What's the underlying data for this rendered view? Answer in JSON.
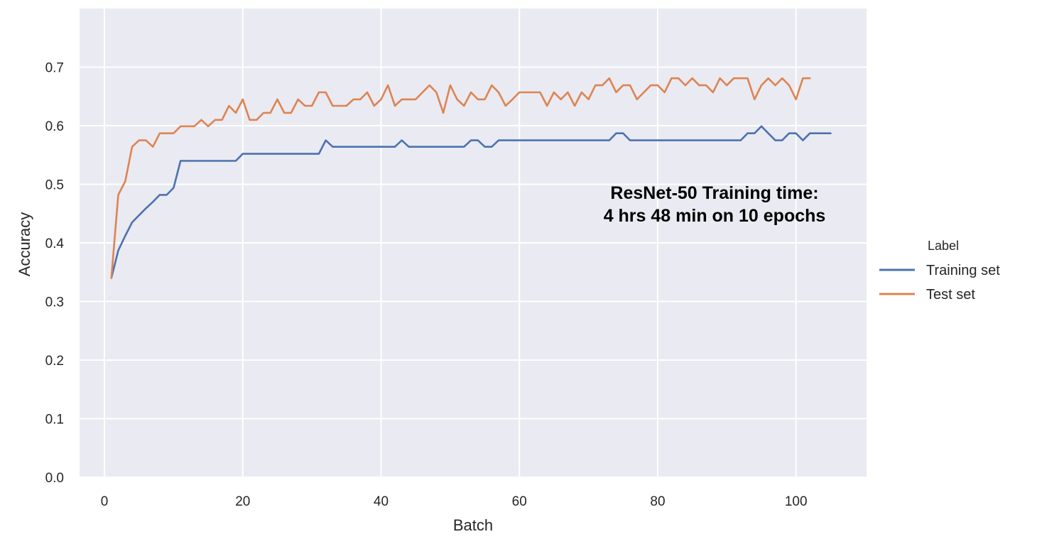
{
  "chart_data": {
    "type": "line",
    "title": "",
    "xlabel": "Batch",
    "ylabel": "Accuracy",
    "xlim": [
      -3.6,
      110.2
    ],
    "ylim": [
      0.0,
      0.8
    ],
    "x_ticks": [
      0,
      20,
      40,
      60,
      80,
      100
    ],
    "x_tick_labels": [
      "0",
      "20",
      "40",
      "60",
      "80",
      "100"
    ],
    "y_ticks": [
      0.0,
      0.1,
      0.2,
      0.3,
      0.4,
      0.5,
      0.6,
      0.7
    ],
    "y_tick_labels": [
      "0.0",
      "0.1",
      "0.2",
      "0.3",
      "0.4",
      "0.5",
      "0.6",
      "0.7"
    ],
    "grid": true,
    "background_color": "#eaeaf2",
    "legend": {
      "title": "Label",
      "placement": "outside-right"
    },
    "annotation": {
      "lines": [
        "ResNet-50 Training time:",
        "4 hrs 48 min on 10 epochs"
      ],
      "x": 88,
      "y": 0.47
    },
    "series": [
      {
        "name": "Training set",
        "color": "#4c72b0",
        "x": [
          1,
          2,
          3,
          4,
          5,
          6,
          7,
          8,
          9,
          10,
          11,
          12,
          13,
          14,
          15,
          16,
          17,
          18,
          19,
          20,
          21,
          22,
          23,
          24,
          25,
          26,
          27,
          28,
          29,
          30,
          31,
          32,
          33,
          34,
          35,
          36,
          37,
          38,
          39,
          40,
          41,
          42,
          43,
          44,
          45,
          46,
          47,
          48,
          49,
          50,
          51,
          52,
          53,
          54,
          55,
          56,
          57,
          58,
          59,
          60,
          61,
          62,
          63,
          64,
          65,
          66,
          67,
          68,
          69,
          70,
          71,
          72,
          73,
          74,
          75,
          76,
          77,
          78,
          79,
          80,
          81,
          82,
          83,
          84,
          85,
          86,
          87,
          88,
          89,
          90,
          91,
          92,
          93,
          94,
          95,
          96,
          97,
          98,
          99,
          100,
          101,
          102,
          103,
          104,
          105
        ],
        "values": [
          0.34,
          0.387,
          0.412,
          0.435,
          0.447,
          0.459,
          0.47,
          0.482,
          0.482,
          0.494,
          0.54,
          0.54,
          0.54,
          0.54,
          0.54,
          0.54,
          0.54,
          0.54,
          0.54,
          0.552,
          0.552,
          0.552,
          0.552,
          0.552,
          0.552,
          0.552,
          0.552,
          0.552,
          0.552,
          0.552,
          0.552,
          0.575,
          0.564,
          0.564,
          0.564,
          0.564,
          0.564,
          0.564,
          0.564,
          0.564,
          0.564,
          0.564,
          0.575,
          0.564,
          0.564,
          0.564,
          0.564,
          0.564,
          0.564,
          0.564,
          0.564,
          0.564,
          0.575,
          0.575,
          0.564,
          0.564,
          0.575,
          0.575,
          0.575,
          0.575,
          0.575,
          0.575,
          0.575,
          0.575,
          0.575,
          0.575,
          0.575,
          0.575,
          0.575,
          0.575,
          0.575,
          0.575,
          0.575,
          0.587,
          0.587,
          0.575,
          0.575,
          0.575,
          0.575,
          0.575,
          0.575,
          0.575,
          0.575,
          0.575,
          0.575,
          0.575,
          0.575,
          0.575,
          0.575,
          0.575,
          0.575,
          0.575,
          0.587,
          0.587,
          0.599,
          0.587,
          0.575,
          0.575,
          0.587,
          0.587,
          0.575,
          0.587,
          0.587,
          0.587,
          0.587
        ]
      },
      {
        "name": "Test set",
        "color": "#dd8452",
        "x": [
          1,
          2,
          3,
          4,
          5,
          6,
          7,
          8,
          9,
          10,
          11,
          12,
          13,
          14,
          15,
          16,
          17,
          18,
          19,
          20,
          21,
          22,
          23,
          24,
          25,
          26,
          27,
          28,
          29,
          30,
          31,
          32,
          33,
          34,
          35,
          36,
          37,
          38,
          39,
          40,
          41,
          42,
          43,
          44,
          45,
          46,
          47,
          48,
          49,
          50,
          51,
          52,
          53,
          54,
          55,
          56,
          57,
          58,
          59,
          60,
          61,
          62,
          63,
          64,
          65,
          66,
          67,
          68,
          69,
          70,
          71,
          72,
          73,
          74,
          75,
          76,
          77,
          78,
          79,
          80,
          81,
          82,
          83,
          84,
          85,
          86,
          87,
          88,
          89,
          90,
          91,
          92,
          93,
          94,
          95,
          96,
          97,
          98,
          99,
          100,
          101,
          102
        ],
        "values": [
          0.34,
          0.482,
          0.505,
          0.564,
          0.575,
          0.575,
          0.564,
          0.587,
          0.587,
          0.587,
          0.599,
          0.599,
          0.599,
          0.61,
          0.599,
          0.61,
          0.61,
          0.634,
          0.622,
          0.645,
          0.61,
          0.61,
          0.622,
          0.622,
          0.645,
          0.622,
          0.622,
          0.645,
          0.634,
          0.634,
          0.657,
          0.657,
          0.634,
          0.634,
          0.634,
          0.645,
          0.645,
          0.657,
          0.634,
          0.645,
          0.669,
          0.634,
          0.645,
          0.645,
          0.645,
          0.657,
          0.669,
          0.657,
          0.622,
          0.669,
          0.645,
          0.634,
          0.657,
          0.645,
          0.645,
          0.669,
          0.657,
          0.634,
          0.645,
          0.657,
          0.657,
          0.657,
          0.657,
          0.634,
          0.657,
          0.645,
          0.657,
          0.634,
          0.657,
          0.645,
          0.669,
          0.669,
          0.681,
          0.657,
          0.669,
          0.669,
          0.645,
          0.657,
          0.669,
          0.669,
          0.657,
          0.681,
          0.681,
          0.669,
          0.681,
          0.669,
          0.669,
          0.657,
          0.681,
          0.669,
          0.681,
          0.681,
          0.681,
          0.645,
          0.669,
          0.681,
          0.669,
          0.681,
          0.669,
          0.645,
          0.681,
          0.681
        ]
      }
    ]
  }
}
